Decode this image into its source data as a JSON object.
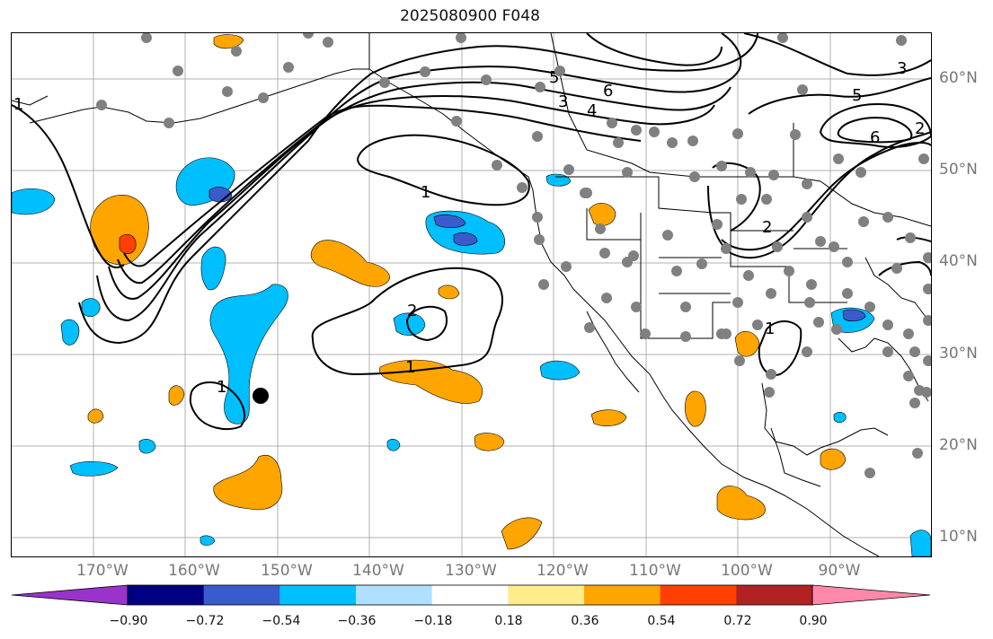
{
  "title": "2025080900 F048",
  "colors": {
    "contour": "#000000",
    "station_marker": "#808080",
    "highlight_marker": "#000000",
    "grid": "#b0b0b0"
  },
  "colorbar": {
    "colors": [
      "#9933cc",
      "#000080",
      "#3a5bcc",
      "#00bfff",
      "#b0e0ff",
      "#ffffff",
      "#ffec8b",
      "#ffa500",
      "#ff4000",
      "#b22222",
      "#ff88aa"
    ],
    "tick_labels": [
      "−0.90",
      "−0.72",
      "−0.54",
      "−0.36",
      "−0.18",
      "0.18",
      "0.36",
      "0.54",
      "0.72",
      "0.90"
    ]
  },
  "latitude_labels": [
    "60°N",
    "50°N",
    "40°N",
    "30°N",
    "20°N",
    "10°N"
  ],
  "longitude_labels": [
    "170°W",
    "160°W",
    "150°W",
    "140°W",
    "130°W",
    "120°W",
    "110°W",
    "100°W",
    "90°W"
  ],
  "contour_labels": [
    "1",
    "2",
    "3",
    "4",
    "5",
    "6",
    "1",
    "1",
    "2",
    "1",
    "1",
    "2",
    "3",
    "5",
    "6"
  ]
}
